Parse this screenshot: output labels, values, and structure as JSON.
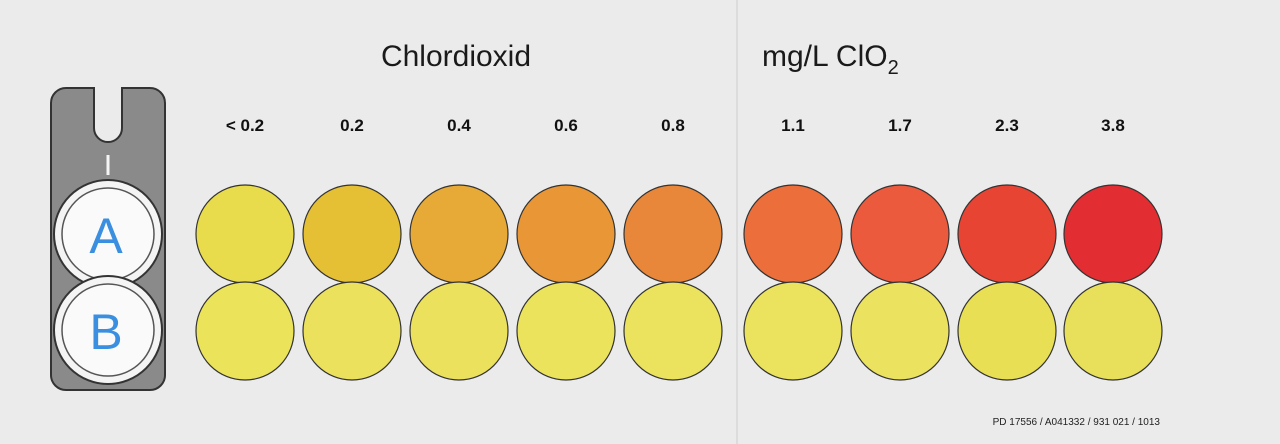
{
  "header": {
    "title": "Chlordioxid",
    "unit": "mg/L ClO",
    "unit_subscript": "2"
  },
  "comparator": {
    "slots": [
      "A",
      "B"
    ]
  },
  "scale": {
    "labels": [
      "< 0.2",
      "0.2",
      "0.4",
      "0.6",
      "0.8",
      "1.1",
      "1.7",
      "2.3",
      "3.8"
    ],
    "row_a_colors": [
      "#e8dc4c",
      "#e6c034",
      "#e8aa36",
      "#e89636",
      "#e8873a",
      "#ec6e3a",
      "#ec5a3e",
      "#e84434",
      "#e22e32"
    ],
    "row_b_colors": [
      "#ebe35a",
      "#ebe15c",
      "#ebe15c",
      "#ebe35c",
      "#ebe35e",
      "#ebe35e",
      "#ebe260",
      "#e8df54",
      "#e8e05a"
    ]
  },
  "footer": "PD 17556 / A041332 / 931 021 / 1013"
}
